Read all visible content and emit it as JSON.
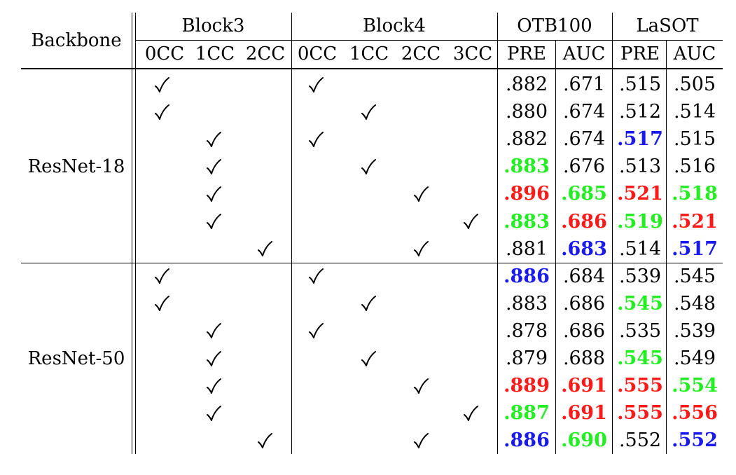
{
  "table": {
    "header": {
      "backbone": "Backbone",
      "groups": [
        "Block3",
        "Block4",
        "OTB100",
        "LaSOT"
      ],
      "subcols": [
        "0CC",
        "1CC",
        "2CC",
        "0CC",
        "1CC",
        "2CC",
        "3CC",
        "PRE",
        "AUC",
        "PRE",
        "AUC"
      ]
    },
    "colors": {
      "red": "#ff1a1a",
      "green": "#22ee22",
      "blue": "#1a1aee",
      "black": "#000000"
    },
    "check_icon": "checkmark-icon",
    "sections": [
      {
        "backbone": "ResNet-18",
        "rows": [
          {
            "block3": "0CC",
            "block4": "0CC",
            "metrics": [
              {
                "v": ".882",
                "c": ""
              },
              {
                "v": ".671",
                "c": ""
              },
              {
                "v": ".515",
                "c": ""
              },
              {
                "v": ".505",
                "c": ""
              }
            ]
          },
          {
            "block3": "0CC",
            "block4": "1CC",
            "metrics": [
              {
                "v": ".880",
                "c": ""
              },
              {
                "v": ".674",
                "c": ""
              },
              {
                "v": ".512",
                "c": ""
              },
              {
                "v": ".514",
                "c": ""
              }
            ]
          },
          {
            "block3": "1CC",
            "block4": "0CC",
            "metrics": [
              {
                "v": ".882",
                "c": ""
              },
              {
                "v": ".674",
                "c": ""
              },
              {
                "v": ".517",
                "c": "blue"
              },
              {
                "v": ".515",
                "c": ""
              }
            ]
          },
          {
            "block3": "1CC",
            "block4": "1CC",
            "metrics": [
              {
                "v": ".883",
                "c": "green"
              },
              {
                "v": ".676",
                "c": ""
              },
              {
                "v": ".513",
                "c": ""
              },
              {
                "v": ".516",
                "c": ""
              }
            ]
          },
          {
            "block3": "1CC",
            "block4": "2CC",
            "metrics": [
              {
                "v": ".896",
                "c": "red"
              },
              {
                "v": ".685",
                "c": "green"
              },
              {
                "v": ".521",
                "c": "red"
              },
              {
                "v": ".518",
                "c": "green"
              }
            ]
          },
          {
            "block3": "1CC",
            "block4": "3CC",
            "metrics": [
              {
                "v": ".883",
                "c": "green"
              },
              {
                "v": ".686",
                "c": "red"
              },
              {
                "v": ".519",
                "c": "green"
              },
              {
                "v": ".521",
                "c": "red"
              }
            ]
          },
          {
            "block3": "2CC",
            "block4": "2CC",
            "metrics": [
              {
                "v": ".881",
                "c": ""
              },
              {
                "v": ".683",
                "c": "blue"
              },
              {
                "v": ".514",
                "c": ""
              },
              {
                "v": ".517",
                "c": "blue"
              }
            ]
          }
        ]
      },
      {
        "backbone": "ResNet-50",
        "rows": [
          {
            "block3": "0CC",
            "block4": "0CC",
            "metrics": [
              {
                "v": ".886",
                "c": "blue"
              },
              {
                "v": ".684",
                "c": ""
              },
              {
                "v": ".539",
                "c": ""
              },
              {
                "v": ".545",
                "c": ""
              }
            ]
          },
          {
            "block3": "0CC",
            "block4": "1CC",
            "metrics": [
              {
                "v": ".883",
                "c": ""
              },
              {
                "v": ".686",
                "c": ""
              },
              {
                "v": ".545",
                "c": "green"
              },
              {
                "v": ".548",
                "c": ""
              }
            ]
          },
          {
            "block3": "1CC",
            "block4": "0CC",
            "metrics": [
              {
                "v": ".878",
                "c": ""
              },
              {
                "v": ".686",
                "c": ""
              },
              {
                "v": ".535",
                "c": ""
              },
              {
                "v": ".539",
                "c": ""
              }
            ]
          },
          {
            "block3": "1CC",
            "block4": "1CC",
            "metrics": [
              {
                "v": ".879",
                "c": ""
              },
              {
                "v": ".688",
                "c": ""
              },
              {
                "v": ".545",
                "c": "green"
              },
              {
                "v": ".549",
                "c": ""
              }
            ]
          },
          {
            "block3": "1CC",
            "block4": "2CC",
            "metrics": [
              {
                "v": ".889",
                "c": "red"
              },
              {
                "v": ".691",
                "c": "red"
              },
              {
                "v": ".555",
                "c": "red"
              },
              {
                "v": ".554",
                "c": "green"
              }
            ]
          },
          {
            "block3": "1CC",
            "block4": "3CC",
            "metrics": [
              {
                "v": ".887",
                "c": "green"
              },
              {
                "v": ".691",
                "c": "red"
              },
              {
                "v": ".555",
                "c": "red"
              },
              {
                "v": ".556",
                "c": "red"
              }
            ]
          },
          {
            "block3": "2CC",
            "block4": "2CC",
            "metrics": [
              {
                "v": ".886",
                "c": "blue"
              },
              {
                "v": ".690",
                "c": "green"
              },
              {
                "v": ".552",
                "c": ""
              },
              {
                "v": ".552",
                "c": "blue"
              }
            ]
          }
        ]
      }
    ]
  }
}
